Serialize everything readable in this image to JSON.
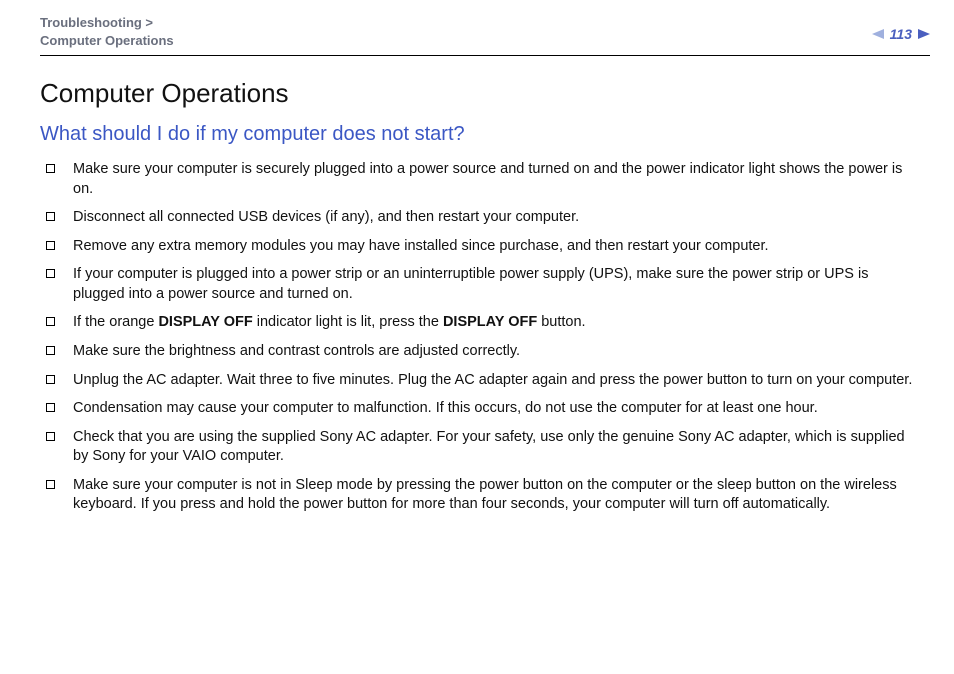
{
  "header": {
    "breadcrumb_line1": "Troubleshooting >",
    "breadcrumb_line2": "Computer Operations",
    "page_number": "113"
  },
  "colors": {
    "breadcrumb": "#6a6f7e",
    "link": "#3b57c4",
    "arrow_light": "#9fb0de",
    "arrow_dark": "#4a5fbf",
    "text": "#111111",
    "hr": "#000000",
    "background": "#ffffff"
  },
  "content": {
    "title": "Computer Operations",
    "subtitle": "What should I do if my computer does not start?",
    "items": [
      {
        "html": "Make sure your computer is securely plugged into a power source and turned on and the power indicator light shows the power is on."
      },
      {
        "html": "Disconnect all connected USB devices (if any), and then restart your computer."
      },
      {
        "html": "Remove any extra memory modules you may have installed since purchase, and then restart your computer."
      },
      {
        "html": "If your computer is plugged into a power strip or an uninterruptible power supply (UPS), make sure the power strip or UPS is plugged into a power source and turned on."
      },
      {
        "html": "If the orange <b>DISPLAY OFF</b> indicator light is lit, press the <b>DISPLAY OFF</b> button."
      },
      {
        "html": "Make sure the brightness and contrast controls are adjusted correctly."
      },
      {
        "html": "Unplug the AC adapter. Wait three to five minutes. Plug the AC adapter again and press the power button to turn on your computer."
      },
      {
        "html": "Condensation may cause your computer to malfunction. If this occurs, do not use the computer for at least one hour."
      },
      {
        "html": "Check that you are using the supplied Sony AC adapter. For your safety, use only the genuine Sony AC adapter, which is supplied by Sony for your VAIO computer."
      },
      {
        "html": "Make sure your computer is not in Sleep mode by pressing the power button on the computer or the sleep button on the wireless keyboard. If you press and hold the power button for more than four seconds, your computer will turn off automatically."
      }
    ]
  },
  "typography": {
    "title_fontsize": 26,
    "subtitle_fontsize": 20,
    "body_fontsize": 14.5,
    "breadcrumb_fontsize": 13
  }
}
